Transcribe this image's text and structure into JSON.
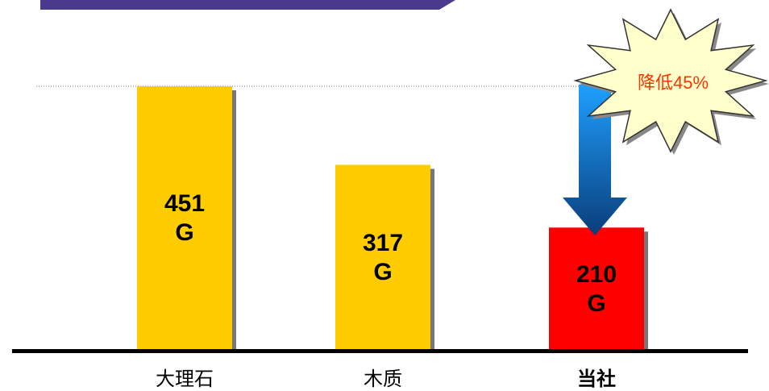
{
  "chart_data": {
    "type": "bar",
    "categories": [
      "大理石",
      "木质",
      "当社"
    ],
    "values": [
      451,
      317,
      210
    ],
    "value_labels": [
      "451\nG",
      "317\nG",
      "210\nG"
    ],
    "colors": [
      "#ffcc00",
      "#ffcc00",
      "#ff0000"
    ],
    "ylim": [
      0,
      451
    ],
    "annotation": "降低45%"
  }
}
